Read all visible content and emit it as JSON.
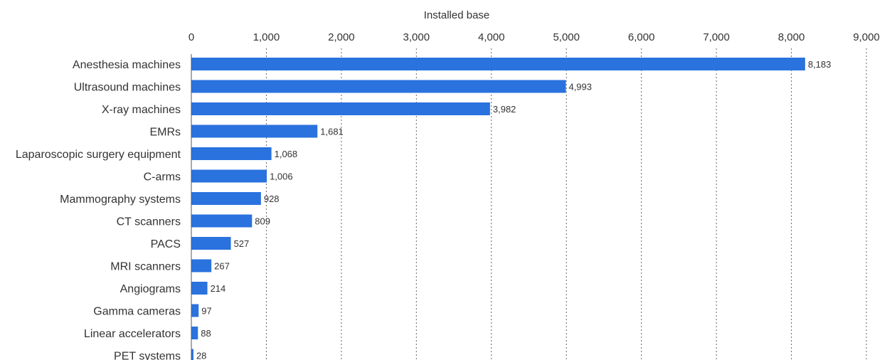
{
  "chart_data": {
    "type": "bar",
    "orientation": "horizontal",
    "xlabel": "Installed base",
    "xlim": [
      0,
      9000
    ],
    "xticks": [
      0,
      1000,
      2000,
      3000,
      4000,
      5000,
      6000,
      7000,
      8000,
      9000
    ],
    "xtick_labels": [
      "0",
      "1,000",
      "2,000",
      "3,000",
      "4,000",
      "5,000",
      "6,000",
      "7,000",
      "8,000",
      "9,000"
    ],
    "x_axis_position": "top",
    "grid": true,
    "bar_color": "#2a72de",
    "categories": [
      "Anesthesia machines",
      "Ultrasound machines",
      "X-ray machines",
      "EMRs",
      "Laparoscopic surgery equipment",
      "C-arms",
      "Mammography systems",
      "CT scanners",
      "PACS",
      "MRI scanners",
      "Angiograms",
      "Gamma cameras",
      "Linear accelerators",
      "PET systems"
    ],
    "values": [
      8183,
      4993,
      3982,
      1681,
      1068,
      1006,
      928,
      809,
      527,
      267,
      214,
      97,
      88,
      28
    ],
    "value_labels": [
      "8,183",
      "4,993",
      "3,982",
      "1,681",
      "1,068",
      "1,006",
      "928",
      "809",
      "527",
      "267",
      "214",
      "97",
      "88",
      "28"
    ]
  }
}
